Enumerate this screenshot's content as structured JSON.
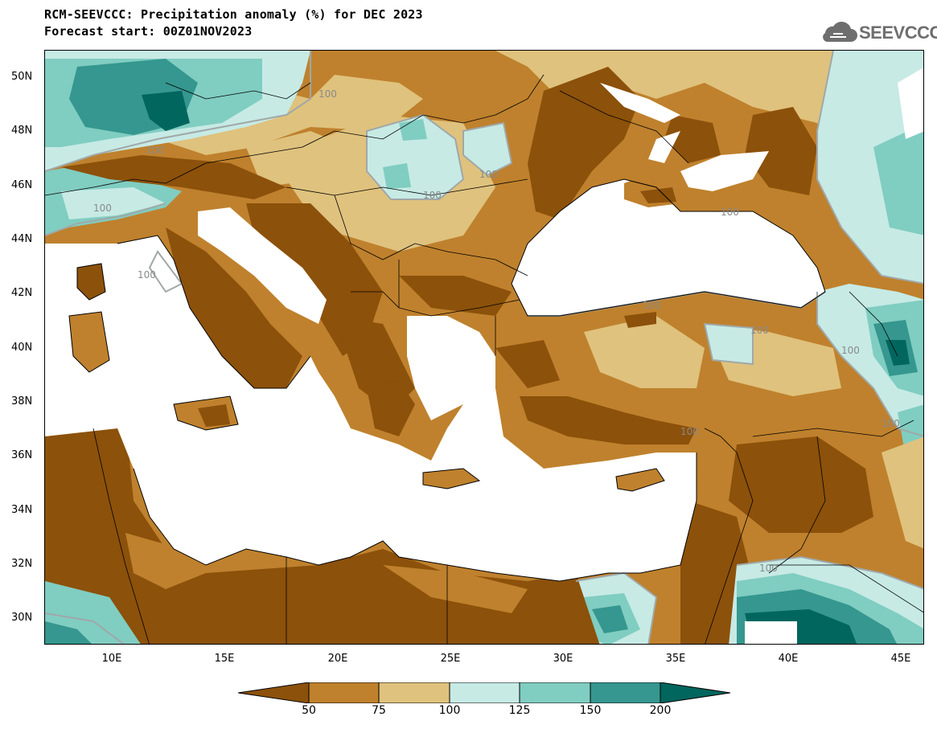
{
  "header": {
    "title_line1": "RCM-SEEVCCC: Precipitation anomaly (%) for DEC 2023",
    "title_line2": "Forecast start: 00Z01NOV2023"
  },
  "logo": {
    "text": "SEEVCCC",
    "icon": "cloud-icon"
  },
  "map": {
    "lat_labels": [
      "50N",
      "48N",
      "46N",
      "44N",
      "42N",
      "40N",
      "38N",
      "36N",
      "34N",
      "32N",
      "30N"
    ],
    "lon_labels": [
      "10E",
      "15E",
      "20E",
      "25E",
      "30E",
      "35E",
      "40E",
      "45E"
    ],
    "contour_label": "100",
    "colors": {
      "lt50": "#8c510a",
      "50_75": "#bf812d",
      "75_100": "#dfc27d",
      "100_125": "#c7eae5",
      "125_150": "#80cdc1",
      "150_200": "#35978f",
      "gt200": "#01665e",
      "sea": "#ffffff",
      "contour": "#a0a8a8"
    }
  },
  "colorbar": {
    "bins": [
      "#8c510a",
      "#bf812d",
      "#dfc27d",
      "#c7eae5",
      "#80cdc1",
      "#35978f",
      "#01665e"
    ],
    "labels": [
      "50",
      "75",
      "100",
      "125",
      "150",
      "200"
    ]
  }
}
